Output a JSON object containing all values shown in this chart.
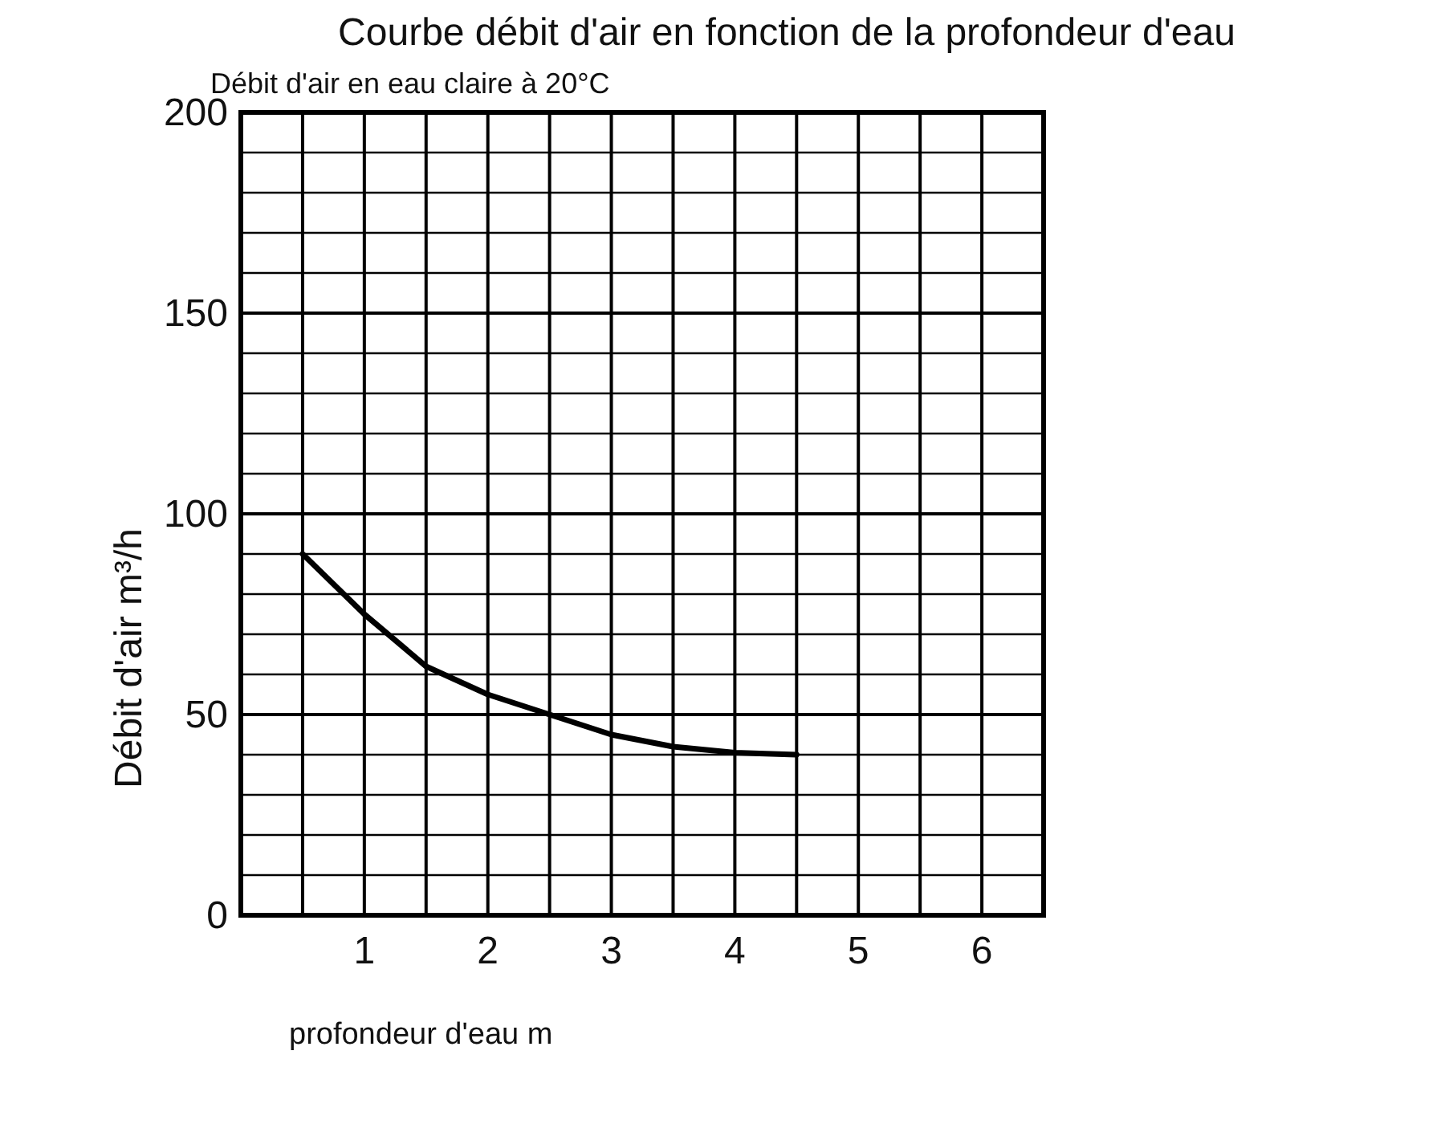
{
  "chart_data": {
    "type": "line",
    "title": "Courbe débit d'air en fonction de la profondeur d'eau",
    "subtitle": "Débit d'air en eau claire à 20°C",
    "xlabel": "profondeur d'eau m",
    "ylabel": "Débit d'air m³/h",
    "x": [
      0.5,
      1,
      1.5,
      2,
      2.5,
      3,
      3.5,
      4,
      4.5
    ],
    "series": [
      {
        "color": "#000000",
        "values": [
          90,
          75,
          62,
          55,
          50,
          45,
          42,
          40.5,
          40
        ]
      }
    ],
    "xlim": [
      0,
      6.5
    ],
    "xticks": [
      {
        "value": 0,
        "label": null
      },
      {
        "value": 0.5,
        "label": null
      },
      1,
      {
        "value": 1.5,
        "label": null
      },
      2,
      {
        "value": 2.5,
        "label": null
      },
      3,
      {
        "value": 3.5,
        "label": null
      },
      4,
      {
        "value": 4.5,
        "label": null
      },
      5,
      {
        "value": 5.5,
        "label": null
      },
      6,
      {
        "value": 6.5,
        "label": null
      }
    ],
    "ylim": [
      0,
      200
    ],
    "yticks": [
      0,
      {
        "value": 10,
        "label": null
      },
      {
        "value": 20,
        "label": null
      },
      {
        "value": 30,
        "label": null
      },
      {
        "value": 40,
        "label": null
      },
      50,
      {
        "value": 60,
        "label": null
      },
      {
        "value": 70,
        "label": null
      },
      {
        "value": 80,
        "label": null
      },
      {
        "value": 90,
        "label": null
      },
      100,
      {
        "value": 110,
        "label": null
      },
      {
        "value": 120,
        "label": null
      },
      {
        "value": 130,
        "label": null
      },
      {
        "value": 140,
        "label": null
      },
      150,
      {
        "value": 160,
        "label": null
      },
      {
        "value": 170,
        "label": null
      },
      {
        "value": 180,
        "label": null
      },
      {
        "value": 190,
        "label": null
      },
      200
    ],
    "grid": true,
    "marker": "none",
    "line_style": "solid"
  }
}
